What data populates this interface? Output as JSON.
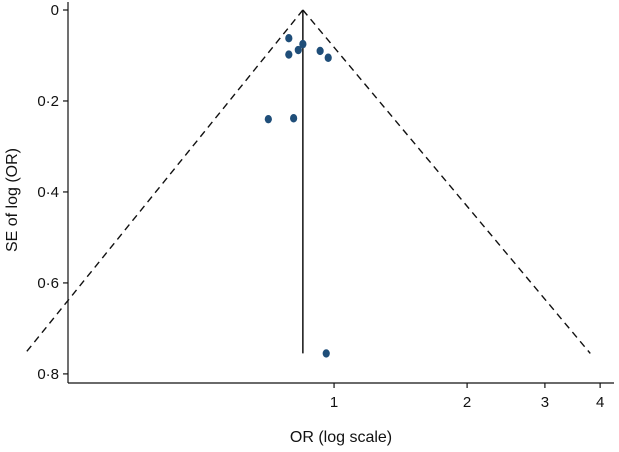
{
  "chart_data": {
    "type": "scatter",
    "title": "",
    "xlabel": "OR (log scale)",
    "ylabel": "SE of log (OR)",
    "x_scale": "log",
    "y_inverted": true,
    "xlim": [
      0.25,
      4.3
    ],
    "ylim": [
      0,
      0.82
    ],
    "x_ticks": [
      {
        "value": 1,
        "label": "1"
      },
      {
        "value": 2,
        "label": "2"
      },
      {
        "value": 3,
        "label": "3"
      },
      {
        "value": 4,
        "label": "4"
      }
    ],
    "y_ticks": [
      {
        "value": 0,
        "label": "0"
      },
      {
        "value": 0.2,
        "label": "0·2"
      },
      {
        "value": 0.4,
        "label": "0·4"
      },
      {
        "value": 0.6,
        "label": "0·6"
      },
      {
        "value": 0.8,
        "label": "0·8"
      }
    ],
    "grid": false,
    "legend": "none",
    "marker_color": "#1f4e79",
    "pooled_or": 0.85,
    "funnel": {
      "apex": {
        "or": 0.85,
        "se": 0
      },
      "bottom_se": 0.755,
      "bottom_left_or": 0.2,
      "bottom_right_or": 3.8
    },
    "points": [
      {
        "or": 0.79,
        "se": 0.062
      },
      {
        "or": 0.85,
        "se": 0.075
      },
      {
        "or": 0.83,
        "se": 0.088
      },
      {
        "or": 0.79,
        "se": 0.098
      },
      {
        "or": 0.93,
        "se": 0.09
      },
      {
        "or": 0.97,
        "se": 0.105
      },
      {
        "or": 0.71,
        "se": 0.24
      },
      {
        "or": 0.81,
        "se": 0.238
      },
      {
        "or": 0.96,
        "se": 0.755
      }
    ]
  }
}
